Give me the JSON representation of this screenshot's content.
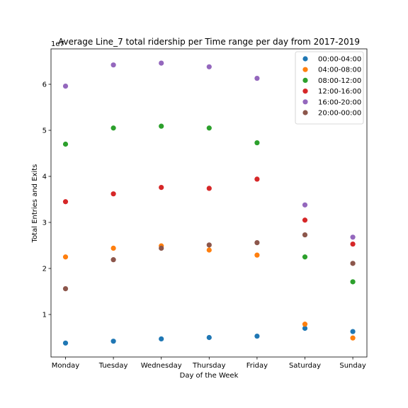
{
  "chart_data": {
    "type": "scatter",
    "title": "Average Line_7 total ridership per Time range per day from 2017-2019",
    "xlabel": "Day of the Week",
    "ylabel": "Total Entries and Exits",
    "y_offset_text": "1e7",
    "categories": [
      "Monday",
      "Tuesday",
      "Wednesday",
      "Thursday",
      "Friday",
      "Saturday",
      "Sunday"
    ],
    "ylim": [
      1,
      67
    ],
    "yticks": [
      1,
      2,
      3,
      4,
      5,
      6
    ],
    "grid": false,
    "legend": "top-right",
    "series": [
      {
        "name": "00:00-04:00",
        "color": "#1f77b4",
        "values": [
          0.38,
          0.42,
          0.47,
          0.5,
          0.53,
          0.7,
          0.63
        ]
      },
      {
        "name": "04:00-08:00",
        "color": "#ff7f0e",
        "values": [
          2.25,
          2.44,
          2.49,
          2.4,
          2.29,
          0.79,
          0.49
        ]
      },
      {
        "name": "08:00-12:00",
        "color": "#2ca02c",
        "values": [
          4.7,
          5.05,
          5.09,
          5.05,
          4.73,
          2.25,
          1.71
        ]
      },
      {
        "name": "12:00-16:00",
        "color": "#d62728",
        "values": [
          3.45,
          3.62,
          3.76,
          3.74,
          3.94,
          3.05,
          2.53
        ]
      },
      {
        "name": "16:00-20:00",
        "color": "#9467bd",
        "values": [
          5.96,
          6.42,
          6.46,
          6.38,
          6.13,
          3.38,
          2.68
        ]
      },
      {
        "name": "20:00-00:00",
        "color": "#8c564b",
        "values": [
          1.56,
          2.19,
          2.44,
          2.51,
          2.56,
          2.73,
          2.11
        ]
      }
    ]
  }
}
